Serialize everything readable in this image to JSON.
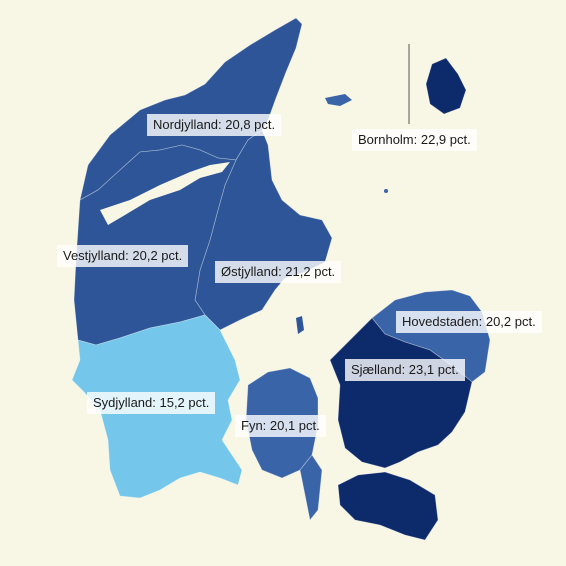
{
  "map": {
    "colors": {
      "background": "#f8f6e4",
      "dark_navy": "#0d2a6b",
      "mid_blue": "#2d5597",
      "steel_blue": "#3a64a8",
      "light_blue": "#74c7ea"
    },
    "regions": [
      {
        "name": "Nordjylland",
        "label": "Nordjylland: 20,8 pct.",
        "value": 20.8,
        "fill": "#2d5597"
      },
      {
        "name": "Vestjylland",
        "label": "Vestjylland: 20,2 pct.",
        "value": 20.2,
        "fill": "#2d5597"
      },
      {
        "name": "Østjylland",
        "label": "Østjylland: 21,2 pct.",
        "value": 21.2,
        "fill": "#2d5597"
      },
      {
        "name": "Sydjylland",
        "label": "Sydjylland: 15,2 pct.",
        "value": 15.2,
        "fill": "#74c7ea"
      },
      {
        "name": "Fyn",
        "label": "Fyn: 20,1 pct.",
        "value": 20.1,
        "fill": "#3a64a8"
      },
      {
        "name": "Sjælland",
        "label": "Sjælland: 23,1 pct.",
        "value": 23.1,
        "fill": "#0d2a6b"
      },
      {
        "name": "Hovedstaden",
        "label": "Hovedstaden: 20,2 pct.",
        "value": 20.2,
        "fill": "#3a64a8"
      },
      {
        "name": "Bornholm",
        "label": "Bornholm: 22,9 pct.",
        "value": 22.9,
        "fill": "#0d2a6b"
      }
    ]
  }
}
